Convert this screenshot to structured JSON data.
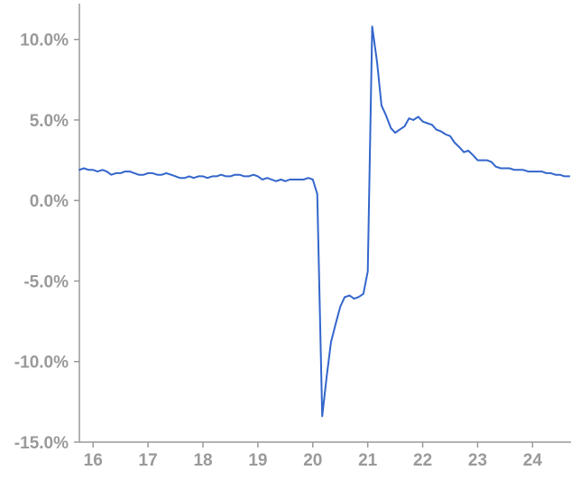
{
  "chart_data": {
    "type": "line",
    "title": "",
    "xlabel": "",
    "ylabel": "",
    "ylim": [
      -15.0,
      12.0
    ],
    "xlim": [
      2015.75,
      2024.7
    ],
    "grid": false,
    "legend": "none",
    "y_ticks": [
      {
        "value": 10.0,
        "label": "10.0%"
      },
      {
        "value": 5.0,
        "label": "5.0%"
      },
      {
        "value": 0.0,
        "label": "0.0%"
      },
      {
        "value": -5.0,
        "label": "-5.0%"
      },
      {
        "value": -10.0,
        "label": "-10.0%"
      },
      {
        "value": -15.0,
        "label": "-15.0%"
      }
    ],
    "x_ticks": [
      {
        "value": 2016,
        "label": "16"
      },
      {
        "value": 2017,
        "label": "17"
      },
      {
        "value": 2018,
        "label": "18"
      },
      {
        "value": 2019,
        "label": "19"
      },
      {
        "value": 2020,
        "label": "20"
      },
      {
        "value": 2021,
        "label": "21"
      },
      {
        "value": 2022,
        "label": "22"
      },
      {
        "value": 2023,
        "label": "23"
      },
      {
        "value": 2024,
        "label": "24"
      }
    ],
    "series": [
      {
        "color": "#3366cc",
        "x": [
          2015.75,
          2015.83,
          2015.92,
          2016.0,
          2016.08,
          2016.17,
          2016.25,
          2016.33,
          2016.42,
          2016.5,
          2016.58,
          2016.67,
          2016.75,
          2016.83,
          2016.92,
          2017.0,
          2017.08,
          2017.17,
          2017.25,
          2017.33,
          2017.42,
          2017.5,
          2017.58,
          2017.67,
          2017.75,
          2017.83,
          2017.92,
          2018.0,
          2018.08,
          2018.17,
          2018.25,
          2018.33,
          2018.42,
          2018.5,
          2018.58,
          2018.67,
          2018.75,
          2018.83,
          2018.92,
          2019.0,
          2019.08,
          2019.17,
          2019.25,
          2019.33,
          2019.42,
          2019.5,
          2019.58,
          2019.67,
          2019.75,
          2019.83,
          2019.92,
          2020.0,
          2020.08,
          2020.17,
          2020.25,
          2020.33,
          2020.42,
          2020.5,
          2020.58,
          2020.67,
          2020.75,
          2020.83,
          2020.92,
          2021.0,
          2021.08,
          2021.17,
          2021.25,
          2021.33,
          2021.42,
          2021.5,
          2021.58,
          2021.67,
          2021.75,
          2021.83,
          2021.92,
          2022.0,
          2022.08,
          2022.17,
          2022.25,
          2022.33,
          2022.42,
          2022.5,
          2022.58,
          2022.67,
          2022.75,
          2022.83,
          2022.92,
          2023.0,
          2023.08,
          2023.17,
          2023.25,
          2023.33,
          2023.42,
          2023.5,
          2023.58,
          2023.67,
          2023.75,
          2023.83,
          2023.92,
          2024.0,
          2024.08,
          2024.17,
          2024.25,
          2024.33,
          2024.42,
          2024.5,
          2024.58,
          2024.67
        ],
        "values": [
          1.9,
          2.0,
          1.9,
          1.9,
          1.8,
          1.9,
          1.8,
          1.6,
          1.7,
          1.7,
          1.8,
          1.8,
          1.7,
          1.6,
          1.6,
          1.7,
          1.7,
          1.6,
          1.6,
          1.7,
          1.6,
          1.5,
          1.4,
          1.4,
          1.5,
          1.4,
          1.5,
          1.5,
          1.4,
          1.5,
          1.5,
          1.6,
          1.5,
          1.5,
          1.6,
          1.6,
          1.5,
          1.5,
          1.6,
          1.5,
          1.3,
          1.4,
          1.3,
          1.2,
          1.3,
          1.2,
          1.3,
          1.3,
          1.3,
          1.3,
          1.4,
          1.3,
          0.4,
          -13.4,
          -11.0,
          -8.8,
          -7.6,
          -6.6,
          -6.0,
          -5.9,
          -6.1,
          -6.0,
          -5.8,
          -4.4,
          10.8,
          8.6,
          5.9,
          5.3,
          4.5,
          4.2,
          4.4,
          4.6,
          5.1,
          5.0,
          5.2,
          4.9,
          4.8,
          4.7,
          4.4,
          4.3,
          4.1,
          4.0,
          3.6,
          3.3,
          3.0,
          3.1,
          2.8,
          2.5,
          2.5,
          2.5,
          2.4,
          2.1,
          2.0,
          2.0,
          2.0,
          1.9,
          1.9,
          1.9,
          1.8,
          1.8,
          1.8,
          1.8,
          1.7,
          1.7,
          1.6,
          1.6,
          1.5,
          1.5
        ]
      }
    ]
  }
}
